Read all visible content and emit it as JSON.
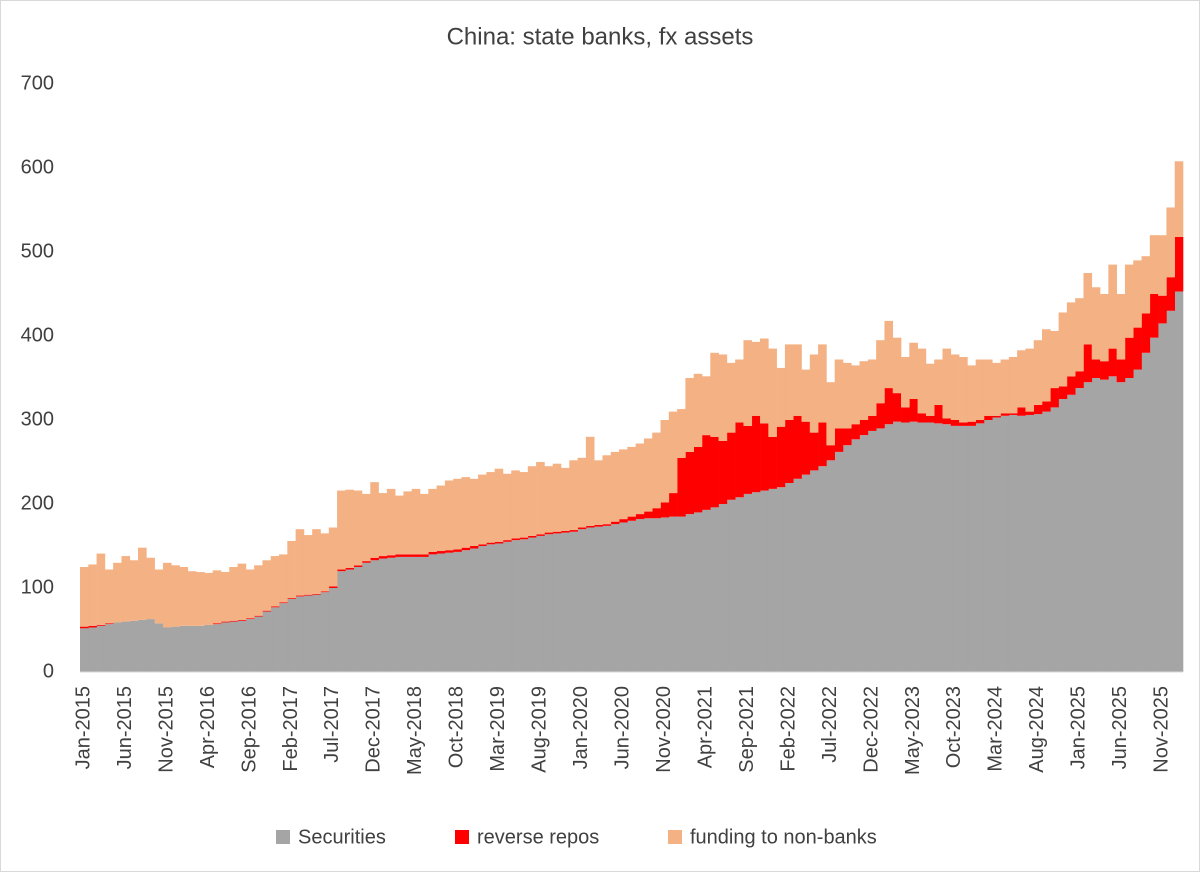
{
  "chart_data": {
    "type": "stacked-bar",
    "title": "China: state banks, fx assets",
    "categories": [
      "Jan-2015",
      null,
      null,
      null,
      null,
      "Jun-2015",
      null,
      null,
      null,
      null,
      "Nov-2015",
      null,
      null,
      null,
      null,
      "Apr-2016",
      null,
      null,
      null,
      null,
      "Sep-2016",
      null,
      null,
      null,
      null,
      "Feb-2017",
      null,
      null,
      null,
      null,
      "Jul-2017",
      null,
      null,
      null,
      null,
      "Dec-2017",
      null,
      null,
      null,
      null,
      "May-2018",
      null,
      null,
      null,
      null,
      "Oct-2018",
      null,
      null,
      null,
      null,
      "Mar-2019",
      null,
      null,
      null,
      null,
      "Aug-2019",
      null,
      null,
      null,
      null,
      "Jan-2020",
      null,
      null,
      null,
      null,
      "Jun-2020",
      null,
      null,
      null,
      null,
      "Nov-2020",
      null,
      null,
      null,
      null,
      "Apr-2021",
      null,
      null,
      null,
      null,
      "Sep-2021",
      null,
      null,
      null,
      null,
      "Feb-2022",
      null,
      null,
      null,
      null,
      "Jul-2022",
      null,
      null,
      null,
      null,
      "Dec-2022",
      null,
      null,
      null,
      null,
      "May-2023",
      null,
      null,
      null,
      null,
      "Oct-2023",
      null,
      null,
      null,
      null,
      "Mar-2024",
      null,
      null,
      null,
      null,
      "Aug-2024",
      null,
      null,
      null,
      null,
      "Jan-2025",
      null,
      null,
      null,
      null,
      "Jun-2025",
      null,
      null,
      null,
      null,
      "Nov-2025",
      null,
      null
    ],
    "series": [
      {
        "name": "Securities",
        "color": "#a5a5a5",
        "values": [
          52,
          53,
          55,
          57,
          59,
          60,
          61,
          62,
          63,
          58,
          53,
          54,
          55,
          55,
          55,
          56,
          57,
          59,
          60,
          61,
          63,
          66,
          72,
          77,
          82,
          87,
          90,
          91,
          92,
          95,
          100,
          120,
          122,
          125,
          130,
          133,
          135,
          136,
          137,
          137,
          137,
          137,
          140,
          141,
          142,
          143,
          145,
          147,
          150,
          152,
          153,
          155,
          157,
          158,
          160,
          162,
          164,
          165,
          166,
          167,
          170,
          172,
          173,
          174,
          176,
          178,
          180,
          182,
          183,
          183,
          184,
          185,
          185,
          188,
          190,
          193,
          196,
          200,
          205,
          208,
          212,
          214,
          216,
          218,
          220,
          225,
          230,
          235,
          240,
          245,
          252,
          262,
          270,
          277,
          282,
          287,
          290,
          295,
          298,
          297,
          298,
          297,
          297,
          296,
          295,
          293,
          293,
          293,
          296,
          300,
          303,
          305,
          306,
          305,
          306,
          307,
          310,
          315,
          325,
          330,
          338,
          345,
          350,
          348,
          352,
          345,
          350,
          360,
          380,
          398,
          415,
          430,
          453
        ]
      },
      {
        "name": "reverse repos",
        "color": "#ff0000",
        "values": [
          2,
          2,
          1,
          1,
          0,
          0,
          0,
          0,
          0,
          0,
          0,
          0,
          0,
          0,
          0,
          0,
          1,
          1,
          1,
          1,
          1,
          1,
          1,
          1,
          1,
          1,
          1,
          1,
          1,
          1,
          2,
          2,
          2,
          2,
          2,
          3,
          3,
          3,
          3,
          3,
          3,
          3,
          3,
          3,
          3,
          3,
          3,
          3,
          2,
          2,
          2,
          2,
          2,
          2,
          2,
          2,
          2,
          2,
          2,
          2,
          2,
          2,
          2,
          2,
          3,
          4,
          5,
          6,
          8,
          12,
          18,
          28,
          70,
          74,
          78,
          89,
          84,
          75,
          80,
          89,
          81,
          91,
          80,
          62,
          72,
          75,
          75,
          63,
          45,
          52,
          18,
          28,
          20,
          18,
          18,
          18,
          30,
          43,
          34,
          18,
          27,
          11,
          8,
          22,
          7,
          7,
          4,
          5,
          4,
          5,
          2,
          3,
          2,
          10,
          4,
          11,
          12,
          23,
          15,
          22,
          20,
          45,
          22,
          22,
          33,
          27,
          48,
          50,
          47,
          52,
          33,
          40,
          65
        ]
      },
      {
        "name": "funding to non-banks",
        "color": "#f4b183",
        "values": [
          71,
          73,
          85,
          64,
          71,
          78,
          72,
          86,
          73,
          64,
          77,
          73,
          70,
          65,
          64,
          62,
          63,
          59,
          64,
          67,
          58,
          60,
          60,
          60,
          57,
          68,
          79,
          71,
          77,
          69,
          70,
          94,
          93,
          89,
          80,
          90,
          75,
          79,
          70,
          75,
          78,
          72,
          75,
          78,
          83,
          84,
          84,
          80,
          83,
          84,
          87,
          79,
          81,
          78,
          83,
          86,
          79,
          81,
          75,
          83,
          83,
          106,
          77,
          82,
          83,
          83,
          83,
          84,
          87,
          90,
          98,
          97,
          58,
          88,
          87,
          70,
          100,
          103,
          83,
          75,
          102,
          88,
          101,
          105,
          70,
          90,
          85,
          62,
          93,
          93,
          75,
          82,
          78,
          70,
          70,
          67,
          75,
          80,
          66,
          60,
          67,
          77,
          62,
          54,
          83,
          78,
          78,
          67,
          72,
          67,
          63,
          64,
          67,
          68,
          75,
          77,
          86,
          68,
          88,
          88,
          87,
          85,
          86,
          80,
          100,
          78,
          87,
          80,
          68,
          70,
          72,
          83,
          90
        ]
      }
    ],
    "ylim": [
      0,
      700
    ],
    "yticks": [
      0,
      100,
      200,
      300,
      400,
      500,
      600,
      700
    ]
  }
}
